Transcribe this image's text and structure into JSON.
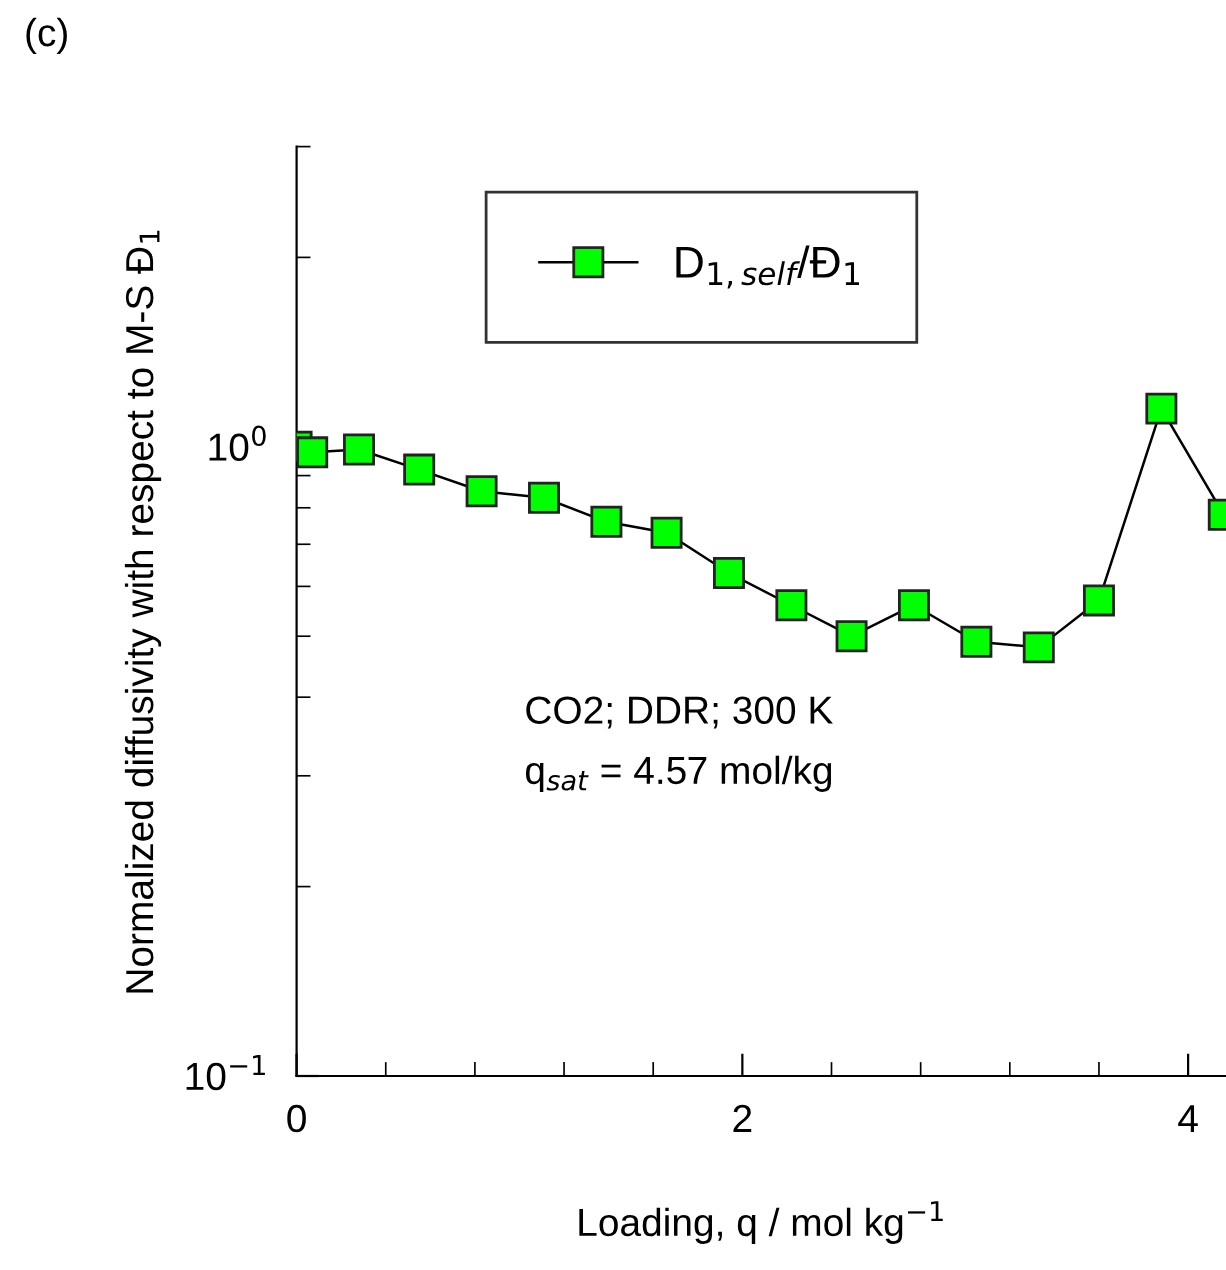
{
  "chart_data": {
    "type": "line",
    "title": "(c)",
    "xlabel": "Loading, q / mol kg$^{−1}$",
    "ylabel": "Normalized diffusivity with respect to M-S Đ$_{1}$",
    "x": [
      0,
      0.07,
      0.28,
      0.55,
      0.83,
      1.11,
      1.39,
      1.66,
      1.94,
      2.22,
      2.49,
      2.77,
      3.05,
      3.33,
      3.6,
      3.88,
      4.16
    ],
    "series": [
      {
        "name": "D$_{1,self}$/Đ$_{1}$",
        "color": "#00ff00",
        "values": [
          1.0,
          0.98,
          0.99,
          0.92,
          0.85,
          0.83,
          0.76,
          0.73,
          0.63,
          0.56,
          0.5,
          0.56,
          0.49,
          0.48,
          0.57,
          1.15,
          0.78
        ]
      }
    ],
    "xlim": [
      0,
      4.17
    ],
    "xticks": [
      0,
      2,
      4
    ],
    "ylim": [
      0.1,
      3
    ],
    "yticks": [
      {
        "value": 0.1,
        "label": "10$^{−1}$"
      },
      {
        "value": 1,
        "label": "10$^{0}$"
      }
    ],
    "log": "y",
    "grid": false,
    "legend": "top left",
    "marker": "square",
    "line_style": "solid",
    "annotations": [
      "CO2; DDR; 300 K",
      "q$_{sat}$ = 4.57 mol/kg"
    ]
  }
}
